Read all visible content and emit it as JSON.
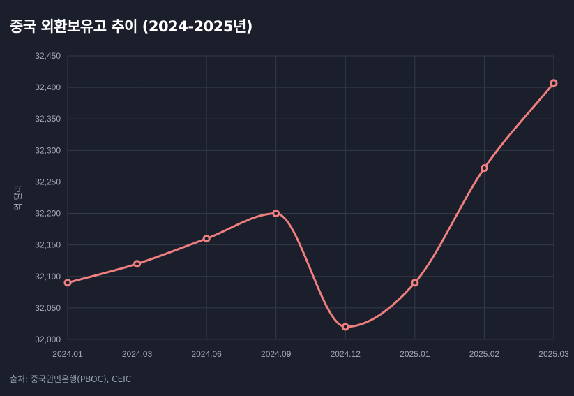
{
  "title": "중국 외환보유고 추이 (2024-2025년)",
  "source": "출처: 중국인민은행(PBOC), CEIC",
  "colors": {
    "background": "#1b1f2b",
    "line": "#f08080",
    "grid": "#343a48",
    "text": "#a4a9b5"
  },
  "chart_data": {
    "type": "line",
    "title": "중국 외환보유고 추이 (2024-2025년)",
    "xlabel": "",
    "ylabel": "억 달러",
    "categories": [
      "2024.01",
      "2024.03",
      "2024.06",
      "2024.09",
      "2024.12",
      "2025.01",
      "2025.02",
      "2025.03"
    ],
    "series": [
      {
        "values": [
          32090,
          32120,
          32160,
          32200,
          32020,
          32090,
          32272,
          32407
        ]
      }
    ],
    "ylim": [
      32000,
      32450
    ],
    "yticks": [
      32000,
      32050,
      32100,
      32150,
      32200,
      32250,
      32300,
      32350,
      32400,
      32450
    ],
    "ytick_labels": [
      "32,000",
      "32,050",
      "32,100",
      "32,150",
      "32,200",
      "32,250",
      "32,300",
      "32,350",
      "32,400",
      "32,450"
    ],
    "grid": true,
    "smooth": true
  }
}
